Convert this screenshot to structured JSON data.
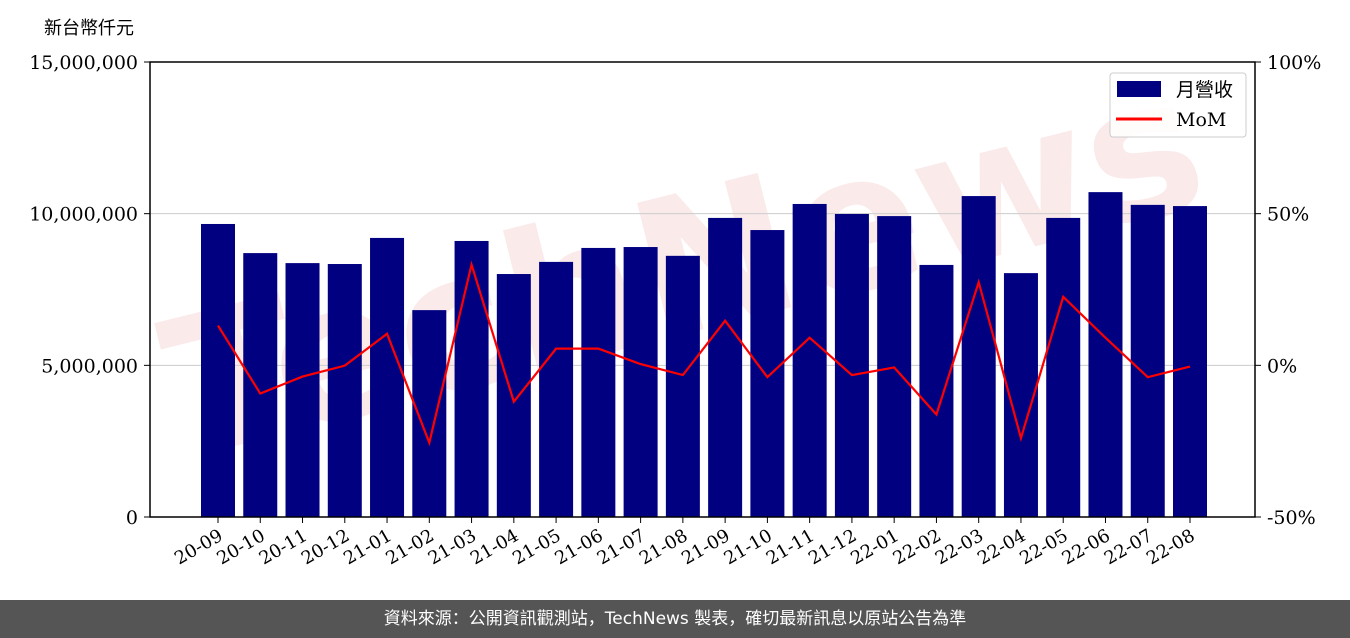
{
  "unit_label": "新台幣仟元",
  "footer": "資料來源：公開資訊觀測站，TechNews 製表，確切最新訊息以原站公告為準",
  "watermark": "TechNews",
  "chart_data": {
    "type": "bar",
    "categories": [
      "20-09",
      "20-10",
      "20-11",
      "20-12",
      "21-01",
      "21-02",
      "21-03",
      "21-04",
      "21-05",
      "21-06",
      "21-07",
      "21-08",
      "21-09",
      "21-10",
      "21-11",
      "21-12",
      "22-01",
      "22-02",
      "22-03",
      "22-04",
      "22-05",
      "22-06",
      "22-07",
      "22-08"
    ],
    "series": [
      {
        "name": "月營收",
        "type": "bar",
        "axis": "left",
        "color": "#000080",
        "values": [
          9660000,
          8700000,
          8370000,
          8340000,
          9200000,
          6820000,
          9100000,
          8010000,
          8410000,
          8870000,
          8900000,
          8610000,
          9860000,
          9460000,
          10320000,
          9990000,
          9920000,
          8310000,
          10580000,
          8040000,
          9860000,
          10710000,
          10290000,
          10250000
        ]
      },
      {
        "name": "MoM",
        "type": "line",
        "axis": "right",
        "color": "#ff0000",
        "values": [
          13.1,
          -9.3,
          -3.7,
          -0.1,
          10.4,
          -25.5,
          33.2,
          -12.0,
          5.5,
          5.5,
          0.4,
          -3.2,
          14.7,
          -3.9,
          9.1,
          -3.2,
          -0.7,
          -16.2,
          27.4,
          -24.0,
          22.6,
          9.1,
          -3.9,
          -0.4
        ]
      }
    ],
    "left_axis": {
      "ylim": [
        0,
        15000000
      ],
      "ticks": [
        "0",
        "5,000,000",
        "10,000,000",
        "15,000,000"
      ],
      "tick_values": [
        0,
        5000000,
        10000000,
        15000000
      ]
    },
    "right_axis": {
      "ylim": [
        -50,
        100
      ],
      "ticks": [
        "-50%",
        "0%",
        "50%",
        "100%"
      ],
      "tick_values": [
        -50,
        0,
        50,
        100
      ]
    },
    "grid": "horizontal",
    "legend": "top-right"
  }
}
